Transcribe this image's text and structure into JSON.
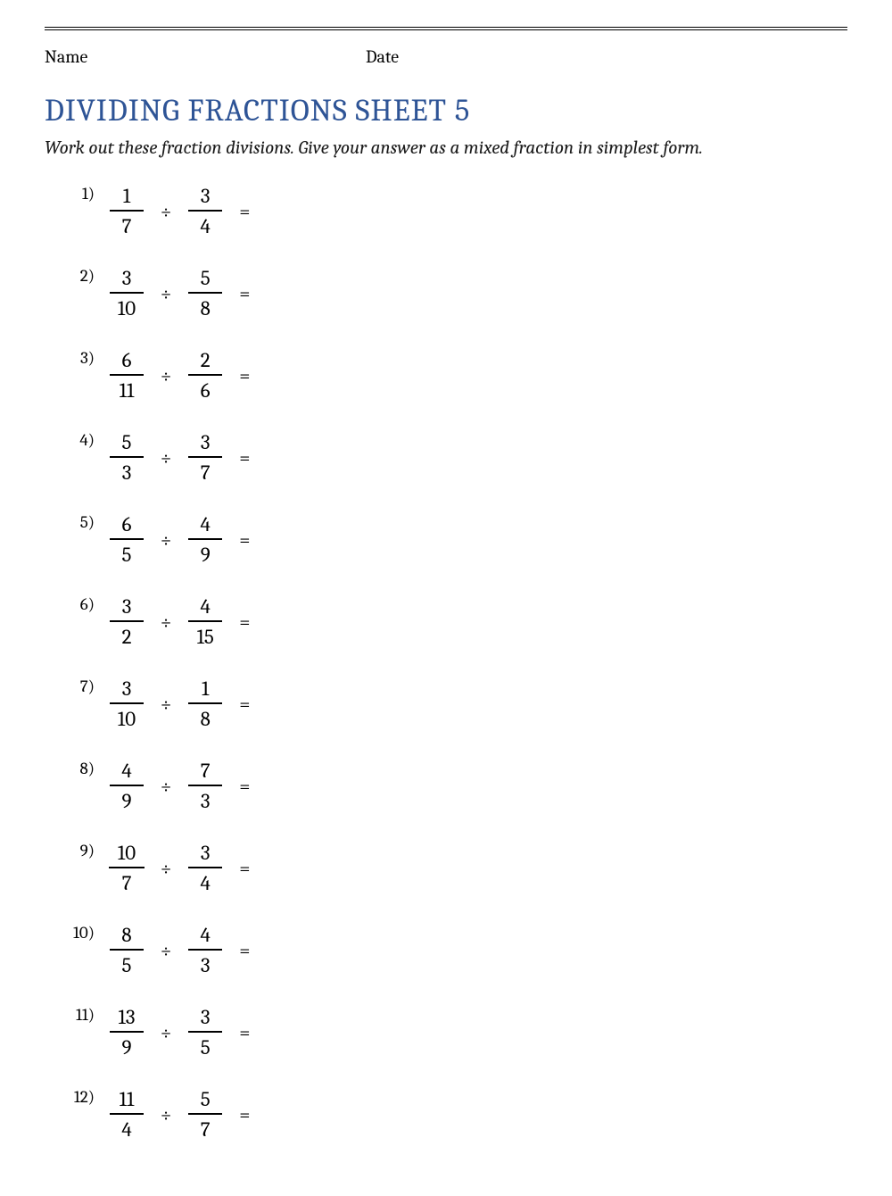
{
  "header": {
    "name_label": "Name",
    "date_label": "Date"
  },
  "title": "DIVIDING FRACTIONS SHEET 5",
  "instructions": "Work out these fraction divisions. Give your answer as a mixed fraction in simplest form.",
  "operator": "÷",
  "equals": "=",
  "colors": {
    "title": "#2e5496",
    "text": "#000000",
    "rule": "#000000",
    "background": "#ffffff"
  },
  "typography": {
    "title_fontsize": 35,
    "body_fontsize": 21,
    "fraction_fontsize": 23,
    "probnum_fontsize": 19
  },
  "problems": [
    {
      "n": "1)",
      "a_num": "1",
      "a_den": "7",
      "b_num": "3",
      "b_den": "4"
    },
    {
      "n": "2)",
      "a_num": "3",
      "a_den": "10",
      "b_num": "5",
      "b_den": "8"
    },
    {
      "n": "3)",
      "a_num": "6",
      "a_den": "11",
      "b_num": "2",
      "b_den": "6"
    },
    {
      "n": "4)",
      "a_num": "5",
      "a_den": "3",
      "b_num": "3",
      "b_den": "7"
    },
    {
      "n": "5)",
      "a_num": "6",
      "a_den": "5",
      "b_num": "4",
      "b_den": "9"
    },
    {
      "n": "6)",
      "a_num": "3",
      "a_den": "2",
      "b_num": "4",
      "b_den": "15"
    },
    {
      "n": "7)",
      "a_num": "3",
      "a_den": "10",
      "b_num": "1",
      "b_den": "8"
    },
    {
      "n": "8)",
      "a_num": "4",
      "a_den": "9",
      "b_num": "7",
      "b_den": "3"
    },
    {
      "n": "9)",
      "a_num": "10",
      "a_den": "7",
      "b_num": "3",
      "b_den": "4"
    },
    {
      "n": "10)",
      "a_num": "8",
      "a_den": "5",
      "b_num": "4",
      "b_den": "3"
    },
    {
      "n": "11)",
      "a_num": "13",
      "a_den": "9",
      "b_num": "3",
      "b_den": "5"
    },
    {
      "n": "12)",
      "a_num": "11",
      "a_den": "4",
      "b_num": "5",
      "b_den": "7"
    }
  ]
}
